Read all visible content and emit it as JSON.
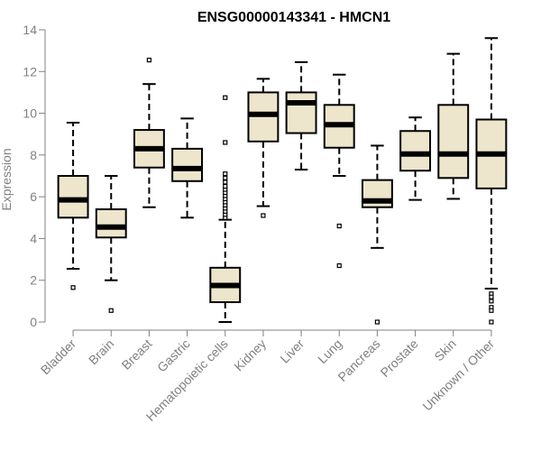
{
  "chart_data": {
    "type": "box",
    "title": "ENSG00000143341 - HMCN1",
    "xlabel": "",
    "ylabel": "Expression",
    "ylim": [
      0,
      14
    ],
    "yticks": [
      0,
      2,
      4,
      6,
      8,
      10,
      12,
      14
    ],
    "box_fill": "#ede6cc",
    "line_color": "#000000",
    "axis_color": "#808080",
    "categories": [
      "Bladder",
      "Brain",
      "Breast",
      "Gastric",
      "Hematopoietic cells",
      "Kidney",
      "Liver",
      "Lung",
      "Pancreas",
      "Prostate",
      "Skin",
      "Unknown / Other"
    ],
    "boxes": [
      {
        "name": "Bladder",
        "whisker_low": 2.55,
        "q1": 5.0,
        "median": 5.85,
        "q3": 7.0,
        "whisker_high": 9.55,
        "outliers": [
          1.65
        ]
      },
      {
        "name": "Brain",
        "whisker_low": 2.0,
        "q1": 4.05,
        "median": 4.55,
        "q3": 5.4,
        "whisker_high": 7.0,
        "outliers": [
          0.55
        ]
      },
      {
        "name": "Breast",
        "whisker_low": 5.5,
        "q1": 7.4,
        "median": 8.3,
        "q3": 9.2,
        "whisker_high": 11.4,
        "outliers": [
          12.55
        ]
      },
      {
        "name": "Gastric",
        "whisker_low": 5.0,
        "q1": 6.75,
        "median": 7.35,
        "q3": 8.3,
        "whisker_high": 9.75,
        "outliers": []
      },
      {
        "name": "Hematopoietic cells",
        "whisker_low": 0.0,
        "q1": 0.95,
        "median": 1.75,
        "q3": 2.6,
        "whisker_high": 4.9,
        "outliers": [
          5.0,
          5.15,
          5.3,
          5.45,
          5.6,
          5.75,
          5.9,
          6.05,
          6.2,
          6.35,
          6.5,
          6.7,
          6.9,
          7.1,
          8.6,
          10.75
        ]
      },
      {
        "name": "Kidney",
        "whisker_low": 5.55,
        "q1": 8.65,
        "median": 9.95,
        "q3": 11.0,
        "whisker_high": 11.65,
        "outliers": [
          5.1
        ]
      },
      {
        "name": "Liver",
        "whisker_low": 7.3,
        "q1": 9.05,
        "median": 10.5,
        "q3": 11.0,
        "whisker_high": 12.45,
        "outliers": []
      },
      {
        "name": "Lung",
        "whisker_low": 7.0,
        "q1": 8.35,
        "median": 9.45,
        "q3": 10.4,
        "whisker_high": 11.85,
        "outliers": [
          4.6,
          2.7
        ]
      },
      {
        "name": "Pancreas",
        "whisker_low": 3.55,
        "q1": 5.5,
        "median": 5.8,
        "q3": 6.8,
        "whisker_high": 8.45,
        "outliers": [
          0.0
        ]
      },
      {
        "name": "Prostate",
        "whisker_low": 5.85,
        "q1": 7.25,
        "median": 8.05,
        "q3": 9.15,
        "whisker_high": 9.8,
        "outliers": []
      },
      {
        "name": "Skin",
        "whisker_low": 5.9,
        "q1": 6.9,
        "median": 8.05,
        "q3": 10.4,
        "whisker_high": 12.85,
        "outliers": []
      },
      {
        "name": "Unknown / Other",
        "whisker_low": 1.6,
        "q1": 6.4,
        "median": 8.05,
        "q3": 9.7,
        "whisker_high": 13.6,
        "outliers": [
          1.35,
          1.2,
          1.0,
          0.7,
          0.55,
          0.0
        ]
      }
    ]
  }
}
